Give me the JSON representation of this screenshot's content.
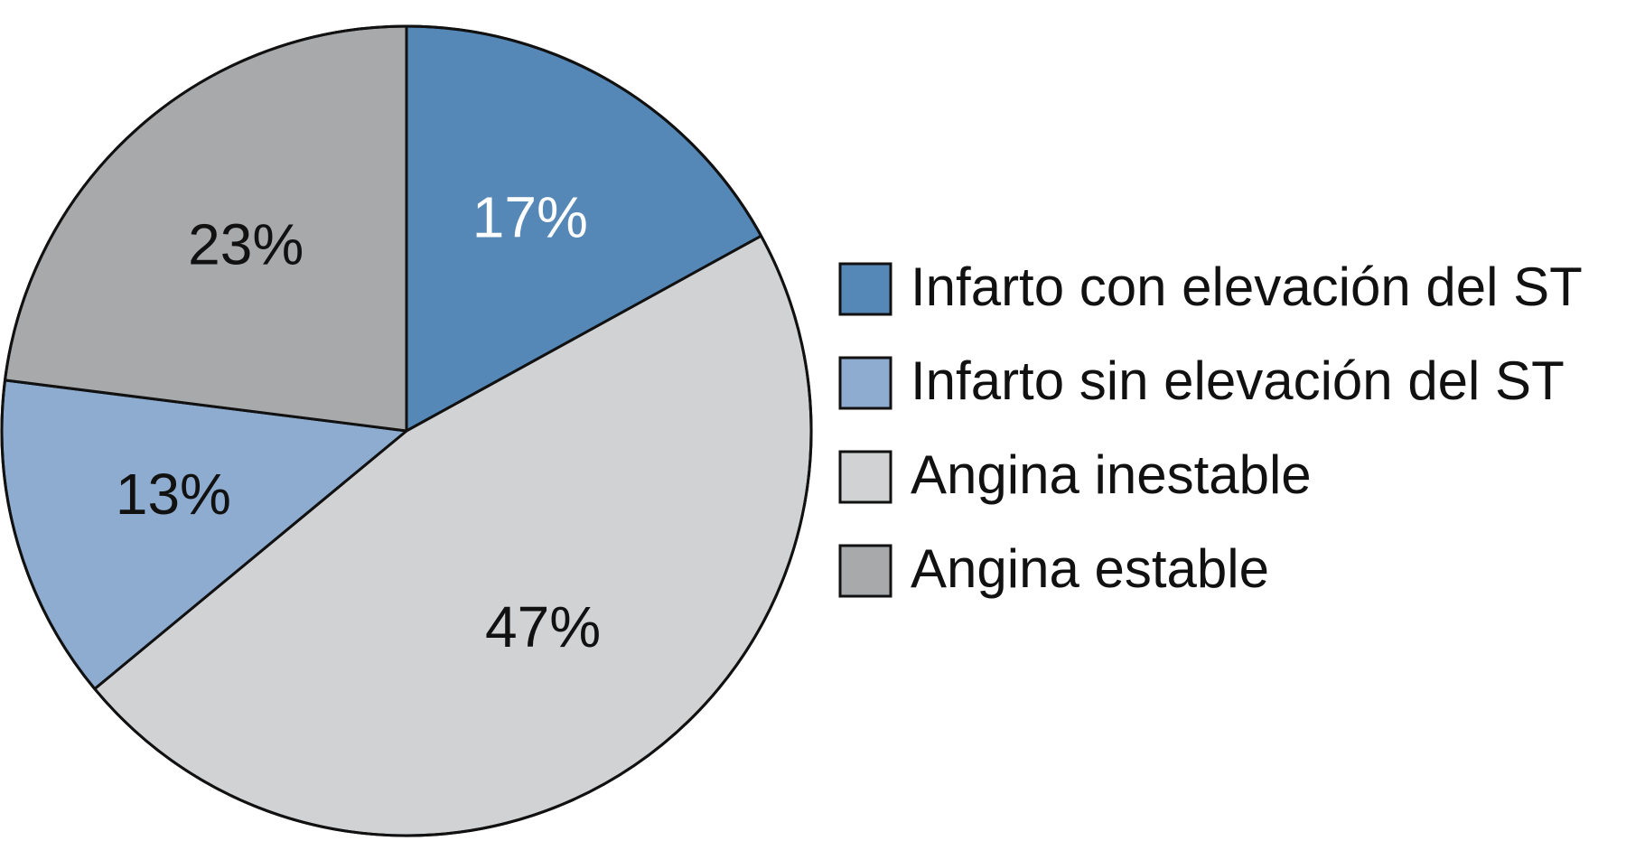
{
  "chart_data": {
    "type": "pie",
    "title": "",
    "slices": [
      {
        "label": "Infarto con elevación del ST",
        "value": 17,
        "value_label": "17%",
        "color": "#5588b6",
        "label_color": "#ffffff"
      },
      {
        "label": "Angina inestable",
        "value": 47,
        "value_label": "47%",
        "color": "#d1d2d4",
        "label_color": "#111111"
      },
      {
        "label": "Infarto sin elevación del ST",
        "value": 13,
        "value_label": "13%",
        "color": "#8eaccf",
        "label_color": "#111111"
      },
      {
        "label": "Angina estable",
        "value": 23,
        "value_label": "23%",
        "color": "#a8a9ab",
        "label_color": "#111111"
      }
    ],
    "start_angle": "12 o'clock",
    "direction": "clockwise",
    "legend": {
      "placement": "right",
      "items": [
        {
          "label": "Infarto con elevación del ST",
          "color": "#5588b6"
        },
        {
          "label": "Infarto sin elevación del ST",
          "color": "#8eaccf"
        },
        {
          "label": "Angina inestable",
          "color": "#d1d2d4"
        },
        {
          "label": "Angina estable",
          "color": "#a8a9ab"
        }
      ]
    }
  }
}
